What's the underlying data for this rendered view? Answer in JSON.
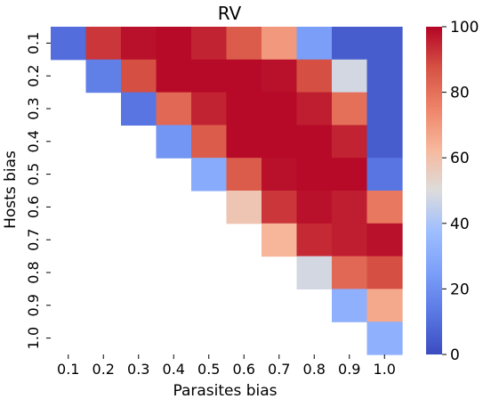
{
  "chart_data": {
    "type": "heatmap",
    "title": "RV",
    "xlabel": "Parasites bias",
    "ylabel": "Hosts bias",
    "x_categories": [
      "0.1",
      "0.2",
      "0.3",
      "0.4",
      "0.5",
      "0.6",
      "0.7",
      "0.8",
      "0.9",
      "1.0"
    ],
    "y_categories": [
      "0.1",
      "0.2",
      "0.3",
      "0.4",
      "0.5",
      "0.6",
      "0.7",
      "0.8",
      "0.9",
      "1.0"
    ],
    "values": [
      [
        10,
        92,
        98,
        99,
        95,
        85,
        70,
        25,
        5,
        5
      ],
      [
        null,
        15,
        88,
        99,
        99,
        99,
        98,
        88,
        48,
        5
      ],
      [
        null,
        null,
        12,
        82,
        95,
        99,
        99,
        96,
        80,
        5
      ],
      [
        null,
        null,
        null,
        22,
        85,
        99,
        99,
        99,
        95,
        5
      ],
      [
        null,
        null,
        null,
        null,
        30,
        85,
        98,
        99,
        99,
        12
      ],
      [
        null,
        null,
        null,
        null,
        null,
        58,
        92,
        98,
        96,
        78
      ],
      [
        null,
        null,
        null,
        null,
        null,
        null,
        63,
        94,
        96,
        98
      ],
      [
        null,
        null,
        null,
        null,
        null,
        null,
        null,
        48,
        82,
        88
      ],
      [
        null,
        null,
        null,
        null,
        null,
        null,
        null,
        null,
        32,
        66
      ],
      [
        null,
        null,
        null,
        null,
        null,
        null,
        null,
        null,
        null,
        32
      ]
    ],
    "colorbar": {
      "min": 0,
      "max": 100,
      "ticks": [
        "0",
        "20",
        "40",
        "60",
        "80",
        "100"
      ],
      "colormap": "coolwarm"
    }
  }
}
